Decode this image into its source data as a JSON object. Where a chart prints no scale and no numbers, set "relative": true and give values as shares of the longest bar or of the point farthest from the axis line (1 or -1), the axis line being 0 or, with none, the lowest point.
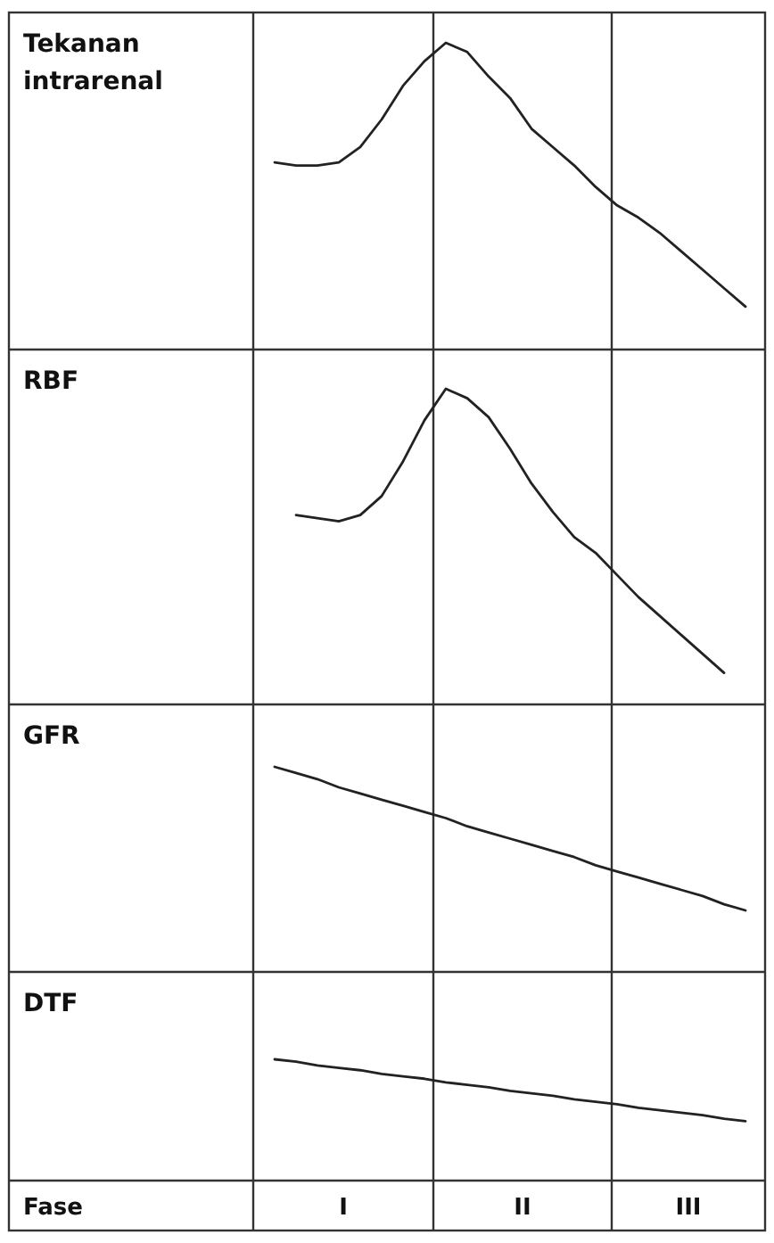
{
  "chart_data": [
    {
      "type": "line",
      "ylabel": "Tekanan intrarenal",
      "relative": true,
      "color": "#222222",
      "categories": [
        null,
        null,
        null,
        null,
        null,
        null,
        null,
        null,
        null,
        null,
        null,
        null,
        null,
        null,
        null,
        null,
        null,
        null,
        null,
        null,
        null,
        null,
        null
      ],
      "values": [
        0.61,
        0.6,
        0.6,
        0.61,
        0.66,
        0.75,
        0.86,
        0.94,
        1,
        0.97,
        0.89,
        0.82,
        0.72,
        0.66,
        0.6,
        0.53,
        0.47,
        0.43,
        0.38,
        0.32,
        0.26,
        0.2,
        0.14
      ]
    },
    {
      "type": "line",
      "ylabel": "RBF",
      "relative": true,
      "color": "#222222",
      "categories": [
        null,
        null,
        null,
        null,
        null,
        null,
        null,
        null,
        null,
        null,
        null,
        null,
        null,
        null,
        null,
        null,
        null,
        null,
        null,
        null,
        null,
        null,
        null
      ],
      "values": [
        null,
        0.6,
        0.59,
        0.58,
        0.6,
        0.66,
        0.77,
        0.9,
        1,
        0.97,
        0.91,
        0.81,
        0.7,
        0.61,
        0.53,
        0.48,
        0.41,
        0.34,
        0.28,
        0.22,
        0.16,
        0.1,
        null
      ]
    },
    {
      "type": "line",
      "ylabel": "GFR",
      "relative": true,
      "color": "#222222",
      "categories": [
        null,
        null,
        null,
        null,
        null,
        null,
        null,
        null,
        null,
        null,
        null,
        null,
        null,
        null,
        null,
        null,
        null,
        null,
        null,
        null,
        null,
        null,
        null
      ],
      "values": [
        1,
        0.97,
        0.94,
        0.9,
        0.87,
        0.84,
        0.81,
        0.78,
        0.75,
        0.71,
        0.68,
        0.65,
        0.62,
        0.59,
        0.56,
        0.52,
        0.49,
        0.46,
        0.43,
        0.4,
        0.37,
        0.33,
        0.3
      ]
    },
    {
      "type": "line",
      "ylabel": "DTF",
      "relative": true,
      "color": "#222222",
      "categories": [
        null,
        null,
        null,
        null,
        null,
        null,
        null,
        null,
        null,
        null,
        null,
        null,
        null,
        null,
        null,
        null,
        null,
        null,
        null,
        null,
        null,
        null,
        null
      ],
      "values": [
        1,
        0.98,
        0.95,
        0.93,
        0.91,
        0.88,
        0.86,
        0.84,
        0.81,
        0.79,
        0.77,
        0.74,
        0.72,
        0.7,
        0.67,
        0.65,
        0.63,
        0.6,
        0.58,
        0.56,
        0.54,
        0.51,
        0.49
      ]
    },
    {
      "type": "other",
      "title": "Fase",
      "categories": [
        "I",
        "II",
        "III"
      ]
    }
  ]
}
